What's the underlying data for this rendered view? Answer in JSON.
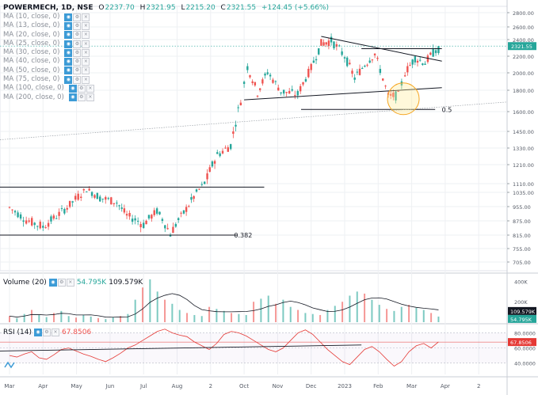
{
  "header": {
    "symbol": "POWERMECH, 1D, NSE",
    "open_label": "O",
    "open": "2237.70",
    "high_label": "H",
    "high": "2321.95",
    "low_label": "L",
    "low": "2215.20",
    "close_label": "C",
    "close": "2321.55",
    "change": "+124.45 (+5.66%)"
  },
  "ma_list": [
    "MA (10, close, 0)",
    "MA (13, close, 0)",
    "MA (20, close, 0)",
    "MA (25, close, 0)",
    "MA (30, close, 0)",
    "MA (40, close, 0)",
    "MA (50, close, 0)",
    "MA (75, close, 0)",
    "MA (100, close, 0)",
    "MA (200, close, 0)"
  ],
  "volume_pane": {
    "label": "Volume (20)",
    "v1": "54.795K",
    "v2": "109.579K"
  },
  "rsi_pane": {
    "label": "RSI (14)",
    "value": "67.8506"
  },
  "colors": {
    "up": "#26a69a",
    "down": "#ef5350",
    "rsi": "#e53935",
    "grid": "#eef0f3",
    "fib": "#131722"
  },
  "chart_data": [
    {
      "type": "candlestick",
      "ylim": [
        665,
        2900
      ],
      "y_ticks": [
        "2800.00",
        "2600.00",
        "2400.00",
        "2200.00",
        "2000.00",
        "1800.00",
        "1600.00",
        "1450.00",
        "1330.00",
        "1210.00",
        "1110.00",
        "1035.00",
        "955.00",
        "875.00",
        "815.00",
        "755.00",
        "705.00"
      ],
      "x_labels": [
        "Mar",
        "Apr",
        "May",
        "Jun",
        "Jul",
        "Aug",
        "2",
        "Oct",
        "Nov",
        "Dec",
        "2023",
        "Feb",
        "Mar",
        "Apr",
        "2"
      ],
      "last_price_label": "2321.55",
      "annotations": [
        {
          "text": "0.382",
          "price": 815
        },
        {
          "text": "0.5",
          "price": 1620
        }
      ],
      "series": [
        {
          "name": "price",
          "values": [
            {
              "m": 0,
              "c": 950
            },
            {
              "m": 0.5,
              "c": 880
            },
            {
              "m": 1,
              "c": 850
            },
            {
              "m": 1.4,
              "c": 900
            },
            {
              "m": 1.8,
              "c": 965
            },
            {
              "m": 2.3,
              "c": 1060
            },
            {
              "m": 2.7,
              "c": 1005
            },
            {
              "m": 3.2,
              "c": 980
            },
            {
              "m": 3.5,
              "c": 905
            },
            {
              "m": 4,
              "c": 860
            },
            {
              "m": 4.4,
              "c": 930
            },
            {
              "m": 4.8,
              "c": 820
            },
            {
              "m": 5.2,
              "c": 920
            },
            {
              "m": 5.5,
              "c": 1010
            },
            {
              "m": 5.9,
              "c": 1140
            },
            {
              "m": 6.2,
              "c": 1280
            },
            {
              "m": 6.6,
              "c": 1350
            },
            {
              "m": 6.9,
              "c": 1700
            },
            {
              "m": 7.1,
              "c": 2070
            },
            {
              "m": 7.4,
              "c": 1780
            },
            {
              "m": 7.7,
              "c": 2010
            },
            {
              "m": 8.1,
              "c": 1790
            },
            {
              "m": 8.6,
              "c": 1760
            },
            {
              "m": 9,
              "c": 2060
            },
            {
              "m": 9.3,
              "c": 2350
            },
            {
              "m": 9.6,
              "c": 2390
            },
            {
              "m": 10,
              "c": 2200
            },
            {
              "m": 10.3,
              "c": 1940
            },
            {
              "m": 10.6,
              "c": 2100
            },
            {
              "m": 10.9,
              "c": 2230
            },
            {
              "m": 11.3,
              "c": 1740
            },
            {
              "m": 11.6,
              "c": 1750
            },
            {
              "m": 11.8,
              "c": 2000
            },
            {
              "m": 12.1,
              "c": 2180
            },
            {
              "m": 12.4,
              "c": 2120
            },
            {
              "m": 12.8,
              "c": 2321.55
            }
          ]
        }
      ]
    },
    {
      "type": "bar",
      "name": "Volume (20)",
      "y_ticks": [
        "400K",
        "200K"
      ],
      "ylim": [
        0,
        450
      ],
      "values_k": [
        60,
        40,
        80,
        120,
        70,
        50,
        90,
        110,
        60,
        45,
        70,
        55,
        40,
        30,
        50,
        60,
        80,
        220,
        340,
        420,
        300,
        220,
        180,
        120,
        90,
        70,
        60,
        150,
        130,
        110,
        90,
        80,
        70,
        200,
        230,
        260,
        180,
        220,
        150,
        120,
        90,
        80,
        70,
        120,
        160,
        200,
        260,
        300,
        280,
        220,
        170,
        130,
        110,
        150,
        170,
        140,
        120,
        90,
        55
      ]
    },
    {
      "type": "line",
      "name": "RSI (14)",
      "y_ticks": [
        "80.0000",
        "60.0000",
        "40.0000"
      ],
      "ylim": [
        25,
        90
      ],
      "last_value": 67.8506,
      "values": [
        50,
        48,
        52,
        55,
        47,
        45,
        51,
        58,
        60,
        56,
        52,
        49,
        45,
        42,
        47,
        53,
        60,
        64,
        70,
        76,
        82,
        85,
        80,
        77,
        75,
        68,
        63,
        58,
        66,
        78,
        82,
        80,
        76,
        70,
        64,
        58,
        55,
        60,
        70,
        80,
        84,
        78,
        68,
        58,
        50,
        42,
        38,
        48,
        58,
        62,
        55,
        45,
        36,
        42,
        55,
        63,
        66,
        60,
        68
      ]
    }
  ]
}
